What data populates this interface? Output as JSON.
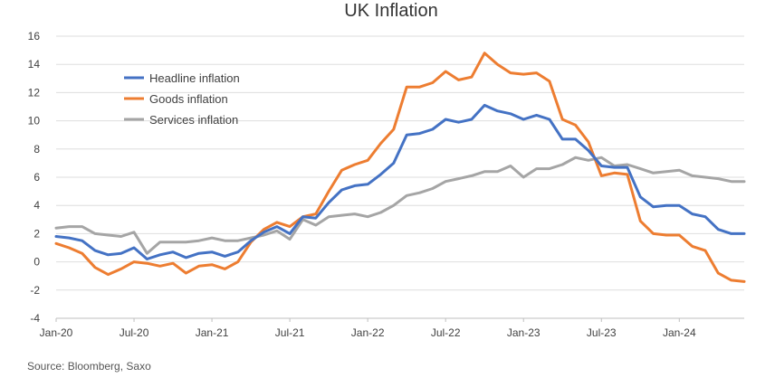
{
  "chart_data": {
    "type": "line",
    "title": "UK Inflation",
    "source": "Source: Bloomberg, Saxo",
    "x_tick_labels": [
      "Jan-20",
      "Jul-20",
      "Jan-21",
      "Jul-21",
      "Jan-22",
      "Jul-22",
      "Jan-23",
      "Jul-23",
      "Jan-24"
    ],
    "ylim": [
      -4,
      16
    ],
    "yticks": [
      -4,
      -2,
      0,
      2,
      4,
      6,
      8,
      10,
      12,
      14,
      16
    ],
    "grid": "horizontal",
    "legend_position": "top-left",
    "x": [
      "2020-01",
      "2020-02",
      "2020-03",
      "2020-04",
      "2020-05",
      "2020-06",
      "2020-07",
      "2020-08",
      "2020-09",
      "2020-10",
      "2020-11",
      "2020-12",
      "2021-01",
      "2021-02",
      "2021-03",
      "2021-04",
      "2021-05",
      "2021-06",
      "2021-07",
      "2021-08",
      "2021-09",
      "2021-10",
      "2021-11",
      "2021-12",
      "2022-01",
      "2022-02",
      "2022-03",
      "2022-04",
      "2022-05",
      "2022-06",
      "2022-07",
      "2022-08",
      "2022-09",
      "2022-10",
      "2022-11",
      "2022-12",
      "2023-01",
      "2023-02",
      "2023-03",
      "2023-04",
      "2023-05",
      "2023-06",
      "2023-07",
      "2023-08",
      "2023-09",
      "2023-10",
      "2023-11",
      "2023-12",
      "2024-01",
      "2024-02",
      "2024-03",
      "2024-04",
      "2024-05",
      "2024-06"
    ],
    "series": [
      {
        "name": "Headline inflation",
        "color": "#4472C4",
        "values": [
          1.8,
          1.7,
          1.5,
          0.8,
          0.5,
          0.6,
          1.0,
          0.2,
          0.5,
          0.7,
          0.3,
          0.6,
          0.7,
          0.4,
          0.7,
          1.5,
          2.1,
          2.5,
          2.0,
          3.2,
          3.1,
          4.2,
          5.1,
          5.4,
          5.5,
          6.2,
          7.0,
          9.0,
          9.1,
          9.4,
          10.1,
          9.9,
          10.1,
          11.1,
          10.7,
          10.5,
          10.1,
          10.4,
          10.1,
          8.7,
          8.7,
          7.9,
          6.8,
          6.7,
          6.7,
          4.6,
          3.9,
          4.0,
          4.0,
          3.4,
          3.2,
          2.3,
          2.0,
          2.0
        ]
      },
      {
        "name": "Goods inflation",
        "color": "#ED7D31",
        "values": [
          1.3,
          1.0,
          0.6,
          -0.4,
          -0.9,
          -0.5,
          0.0,
          -0.1,
          -0.3,
          -0.1,
          -0.8,
          -0.3,
          -0.2,
          -0.5,
          0.0,
          1.4,
          2.3,
          2.8,
          2.5,
          3.2,
          3.4,
          5.0,
          6.5,
          6.9,
          7.2,
          8.4,
          9.4,
          12.4,
          12.4,
          12.7,
          13.5,
          12.9,
          13.1,
          14.8,
          14.0,
          13.4,
          13.3,
          13.4,
          12.8,
          10.1,
          9.7,
          8.5,
          6.1,
          6.3,
          6.2,
          2.9,
          2.0,
          1.9,
          1.9,
          1.1,
          0.8,
          -0.8,
          -1.3,
          -1.4
        ]
      },
      {
        "name": "Services inflation",
        "color": "#A5A5A5",
        "values": [
          2.4,
          2.5,
          2.5,
          2.0,
          1.9,
          1.8,
          2.1,
          0.6,
          1.4,
          1.4,
          1.4,
          1.5,
          1.7,
          1.5,
          1.5,
          1.7,
          1.9,
          2.2,
          1.6,
          3.0,
          2.6,
          3.2,
          3.3,
          3.4,
          3.2,
          3.5,
          4.0,
          4.7,
          4.9,
          5.2,
          5.7,
          5.9,
          6.1,
          6.4,
          6.4,
          6.8,
          6.0,
          6.6,
          6.6,
          6.9,
          7.4,
          7.2,
          7.4,
          6.8,
          6.9,
          6.6,
          6.3,
          6.4,
          6.5,
          6.1,
          6.0,
          5.9,
          5.7,
          5.7
        ]
      }
    ]
  }
}
